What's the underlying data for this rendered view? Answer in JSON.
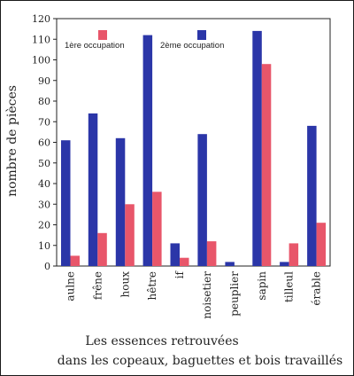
{
  "chart_data": {
    "type": "bar",
    "categories": [
      "aulne",
      "frêne",
      "houx",
      "hêtre",
      "if",
      "noisetier",
      "peuplier",
      "sapin",
      "tilleul",
      "érable"
    ],
    "series": [
      {
        "name": "1ère occupation",
        "color": "#e8566a",
        "values": [
          5,
          16,
          30,
          36,
          4,
          12,
          0,
          98,
          11,
          21
        ]
      },
      {
        "name": "2ème occupation",
        "color": "#2b36a8",
        "values": [
          61,
          74,
          62,
          112,
          11,
          64,
          2,
          114,
          2,
          68
        ]
      }
    ],
    "ylabel": "nombre de pièces",
    "xlabel_line1": "Les essences retrouvées",
    "xlabel_line2": "dans les copeaux, baguettes et bois travaillés",
    "ylim": [
      0,
      120
    ],
    "yticks": [
      0,
      10,
      20,
      30,
      40,
      50,
      60,
      70,
      80,
      90,
      100,
      110,
      120
    ],
    "legend_position": "top",
    "grid": false
  }
}
